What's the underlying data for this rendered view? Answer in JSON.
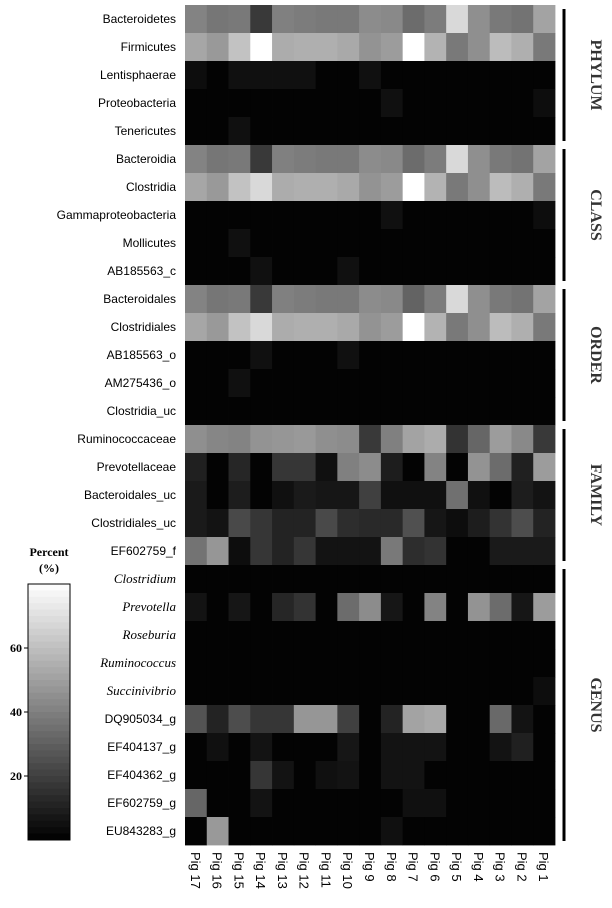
{
  "chart_data": {
    "type": "heatmap",
    "columns": [
      "Pig 17",
      "Pig 16",
      "Pig 15",
      "Pig 14",
      "Pig 13",
      "Pig 12",
      "Pig 11",
      "Pig 10",
      "Pig 9",
      "Pig 8",
      "Pig 7",
      "Pig 6",
      "Pig 5",
      "Pig 4",
      "Pig 3",
      "Pig 2",
      "Pig 1"
    ],
    "groups": [
      {
        "name": "PHYLUM",
        "rows": [
          {
            "label": "Bacteroidetes",
            "italic": false,
            "values": [
              41,
              37,
              38,
              18,
              40,
              39,
              38,
              38,
              44,
              43,
              34,
              39,
              68,
              45,
              38,
              36,
              51
            ]
          },
          {
            "label": "Firmicutes",
            "italic": false,
            "values": [
              52,
              48,
              61,
              82,
              54,
              55,
              55,
              53,
              46,
              49,
              81,
              56,
              38,
              45,
              59,
              55,
              38
            ]
          },
          {
            "label": "Lentisphaerae",
            "italic": false,
            "values": [
              4,
              1,
              5,
              5,
              5,
              5,
              1,
              1,
              5,
              1,
              1,
              1,
              1,
              1,
              1,
              1,
              1
            ]
          },
          {
            "label": "Proteobacteria",
            "italic": false,
            "values": [
              1,
              1,
              1,
              1,
              1,
              1,
              1,
              1,
              1,
              5,
              1,
              1,
              1,
              1,
              1,
              1,
              4
            ]
          },
          {
            "label": "Tenericutes",
            "italic": false,
            "values": [
              1,
              1,
              5,
              1,
              1,
              1,
              1,
              1,
              1,
              1,
              1,
              1,
              1,
              1,
              1,
              1,
              1
            ]
          }
        ]
      },
      {
        "name": "CLASS",
        "rows": [
          {
            "label": "Bacteroidia",
            "italic": false,
            "values": [
              41,
              37,
              38,
              18,
              40,
              39,
              38,
              38,
              44,
              43,
              34,
              39,
              68,
              45,
              38,
              36,
              51
            ]
          },
          {
            "label": "Clostridia",
            "italic": false,
            "values": [
              52,
              48,
              61,
              68,
              54,
              55,
              55,
              53,
              46,
              49,
              81,
              56,
              38,
              45,
              59,
              55,
              38
            ]
          },
          {
            "label": "Gammaproteobacteria",
            "italic": false,
            "values": [
              1,
              1,
              1,
              1,
              1,
              1,
              1,
              1,
              1,
              5,
              1,
              1,
              1,
              1,
              1,
              1,
              4
            ]
          },
          {
            "label": "Mollicutes",
            "italic": false,
            "values": [
              1,
              1,
              5,
              1,
              1,
              1,
              1,
              1,
              1,
              1,
              1,
              1,
              1,
              1,
              1,
              1,
              1
            ]
          },
          {
            "label": "AB185563_c",
            "italic": false,
            "values": [
              1,
              1,
              1,
              5,
              1,
              1,
              1,
              5,
              1,
              1,
              1,
              1,
              1,
              1,
              1,
              1,
              1
            ]
          }
        ]
      },
      {
        "name": "ORDER",
        "rows": [
          {
            "label": "Bacteroidales",
            "italic": false,
            "values": [
              41,
              37,
              38,
              18,
              40,
              39,
              38,
              38,
              44,
              43,
              31,
              39,
              68,
              45,
              38,
              36,
              51
            ]
          },
          {
            "label": "Clostridiales",
            "italic": false,
            "values": [
              52,
              48,
              61,
              68,
              54,
              55,
              55,
              53,
              46,
              49,
              81,
              56,
              38,
              45,
              59,
              55,
              38
            ]
          },
          {
            "label": "AB185563_o",
            "italic": false,
            "values": [
              1,
              1,
              1,
              5,
              1,
              1,
              1,
              5,
              1,
              1,
              1,
              1,
              1,
              1,
              1,
              1,
              1
            ]
          },
          {
            "label": "AM275436_o",
            "italic": false,
            "values": [
              1,
              1,
              5,
              1,
              1,
              1,
              1,
              1,
              1,
              1,
              1,
              1,
              1,
              1,
              1,
              1,
              1
            ]
          },
          {
            "label": "Clostridia_uc",
            "italic": false,
            "values": [
              1,
              1,
              1,
              1,
              1,
              1,
              1,
              1,
              1,
              1,
              1,
              1,
              1,
              1,
              1,
              1,
              1
            ]
          }
        ]
      },
      {
        "name": "FAMILY",
        "rows": [
          {
            "label": "Ruminococcaceae",
            "italic": false,
            "values": [
              45,
              42,
              41,
              46,
              47,
              48,
              45,
              44,
              18,
              40,
              51,
              54,
              16,
              32,
              49,
              43,
              18
            ]
          },
          {
            "label": "Prevotellaceae",
            "italic": false,
            "values": [
              10,
              1,
              12,
              1,
              17,
              17,
              5,
              40,
              44,
              9,
              1,
              41,
              1,
              46,
              34,
              10,
              49
            ]
          },
          {
            "label": "Bacteroidales_uc",
            "italic": false,
            "values": [
              8,
              1,
              9,
              1,
              5,
              8,
              7,
              7,
              20,
              5,
              5,
              5,
              35,
              5,
              1,
              9,
              6
            ]
          },
          {
            "label": "Clostridiales_uc",
            "italic": false,
            "values": [
              8,
              6,
              23,
              17,
              11,
              11,
              23,
              14,
              13,
              13,
              25,
              7,
              4,
              9,
              16,
              24,
              11
            ]
          },
          {
            "label": "EF602759_f",
            "italic": false,
            "values": [
              36,
              47,
              4,
              17,
              11,
              17,
              6,
              6,
              6,
              38,
              14,
              16,
              1,
              1,
              8,
              8,
              8
            ]
          }
        ]
      },
      {
        "name": "GENUS",
        "rows": [
          {
            "label": "Clostridium",
            "italic": true,
            "values": [
              1,
              1,
              1,
              1,
              1,
              1,
              1,
              1,
              1,
              1,
              1,
              1,
              1,
              1,
              1,
              1,
              1
            ]
          },
          {
            "label": "Prevotella",
            "italic": true,
            "values": [
              6,
              1,
              7,
              1,
              12,
              16,
              1,
              34,
              44,
              7,
              1,
              41,
              1,
              46,
              34,
              7,
              49
            ]
          },
          {
            "label": "Roseburia",
            "italic": true,
            "values": [
              1,
              1,
              1,
              1,
              1,
              1,
              1,
              1,
              1,
              1,
              1,
              1,
              1,
              1,
              1,
              1,
              1
            ]
          },
          {
            "label": "Ruminococcus",
            "italic": true,
            "values": [
              1,
              1,
              1,
              1,
              1,
              1,
              1,
              1,
              1,
              1,
              1,
              1,
              1,
              1,
              1,
              1,
              1
            ]
          },
          {
            "label": "Succinivibrio",
            "italic": true,
            "values": [
              1,
              1,
              1,
              1,
              1,
              1,
              1,
              1,
              1,
              1,
              1,
              1,
              1,
              1,
              1,
              1,
              4
            ]
          },
          {
            "label": "DQ905034_g",
            "italic": false,
            "values": [
              26,
              11,
              24,
              17,
              17,
              47,
              47,
              20,
              1,
              11,
              51,
              53,
              1,
              1,
              33,
              6,
              1
            ]
          },
          {
            "label": "EF404137_g",
            "italic": false,
            "values": [
              1,
              5,
              1,
              6,
              1,
              1,
              1,
              7,
              1,
              6,
              6,
              6,
              1,
              1,
              6,
              10,
              1
            ]
          },
          {
            "label": "EF404362_g",
            "italic": false,
            "values": [
              1,
              1,
              1,
              17,
              6,
              1,
              5,
              6,
              1,
              6,
              6,
              1,
              1,
              1,
              1,
              1,
              1
            ]
          },
          {
            "label": "EF602759_g",
            "italic": false,
            "values": [
              32,
              1,
              1,
              6,
              1,
              1,
              1,
              1,
              1,
              1,
              5,
              5,
              1,
              1,
              1,
              1,
              1
            ]
          },
          {
            "label": "EU843283_g",
            "italic": false,
            "values": [
              1,
              48,
              1,
              1,
              1,
              1,
              1,
              1,
              1,
              5,
              1,
              1,
              1,
              1,
              1,
              1,
              1
            ]
          }
        ]
      }
    ],
    "legend": {
      "title": "Percent",
      "subtitle": "(%)",
      "ticks": [
        20,
        40,
        60
      ],
      "range": [
        0,
        80
      ]
    },
    "colors": {
      "low": "#000000",
      "high": "#ffffff"
    }
  }
}
